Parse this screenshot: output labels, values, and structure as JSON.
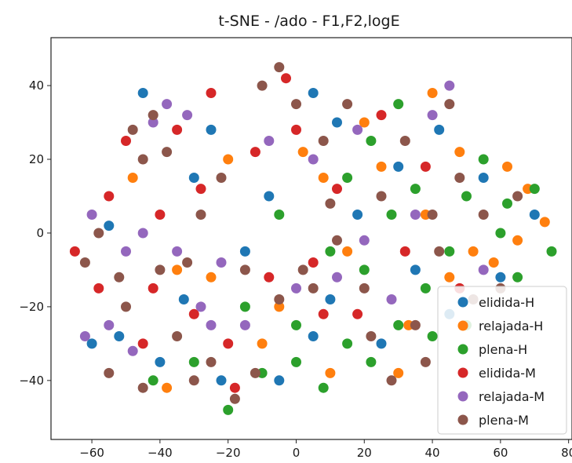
{
  "chart_data": {
    "type": "scatter",
    "title": "t-SNE - /ado - F1,F2,logE",
    "xlabel": "",
    "ylabel": "",
    "xlim": [
      -72,
      81
    ],
    "ylim": [
      -56,
      53
    ],
    "xticks": [
      -60,
      -40,
      -20,
      0,
      20,
      40,
      60,
      80
    ],
    "yticks": [
      -40,
      -20,
      0,
      20,
      40
    ],
    "grid": false,
    "legend_position": "lower-right",
    "series": [
      {
        "name": "elidida-H",
        "color": "#1f77b4",
        "points": [
          [
            -55,
            2
          ],
          [
            -52,
            -28
          ],
          [
            -45,
            38
          ],
          [
            -40,
            -35
          ],
          [
            -33,
            -18
          ],
          [
            -25,
            28
          ],
          [
            -15,
            -5
          ],
          [
            -8,
            10
          ],
          [
            5,
            38
          ],
          [
            10,
            -18
          ],
          [
            18,
            5
          ],
          [
            25,
            -30
          ],
          [
            35,
            -10
          ],
          [
            42,
            28
          ],
          [
            55,
            15
          ],
          [
            60,
            -12
          ],
          [
            70,
            5
          ],
          [
            -30,
            15
          ],
          [
            5,
            -28
          ],
          [
            30,
            18
          ],
          [
            -60,
            -30
          ],
          [
            -22,
            -40
          ],
          [
            12,
            30
          ],
          [
            45,
            -22
          ],
          [
            -5,
            -40
          ]
        ]
      },
      {
        "name": "relajada-H",
        "color": "#ff7f0e",
        "points": [
          [
            -48,
            15
          ],
          [
            -35,
            -10
          ],
          [
            -20,
            20
          ],
          [
            -5,
            -20
          ],
          [
            2,
            22
          ],
          [
            15,
            -5
          ],
          [
            20,
            30
          ],
          [
            30,
            -38
          ],
          [
            38,
            5
          ],
          [
            45,
            -12
          ],
          [
            52,
            -5
          ],
          [
            62,
            18
          ],
          [
            68,
            12
          ],
          [
            73,
            3
          ],
          [
            58,
            -8
          ],
          [
            40,
            38
          ],
          [
            10,
            -38
          ],
          [
            -10,
            -30
          ],
          [
            -25,
            -12
          ],
          [
            25,
            18
          ],
          [
            48,
            22
          ],
          [
            65,
            -2
          ],
          [
            8,
            15
          ],
          [
            -38,
            -42
          ],
          [
            33,
            -25
          ]
        ]
      },
      {
        "name": "plena-H",
        "color": "#2ca02c",
        "points": [
          [
            -42,
            -40
          ],
          [
            -30,
            -35
          ],
          [
            -20,
            -48
          ],
          [
            -10,
            -38
          ],
          [
            0,
            -35
          ],
          [
            8,
            -42
          ],
          [
            15,
            -30
          ],
          [
            22,
            -35
          ],
          [
            30,
            -25
          ],
          [
            40,
            -28
          ],
          [
            20,
            -10
          ],
          [
            28,
            5
          ],
          [
            35,
            12
          ],
          [
            45,
            -5
          ],
          [
            50,
            10
          ],
          [
            55,
            20
          ],
          [
            60,
            0
          ],
          [
            65,
            -12
          ],
          [
            70,
            12
          ],
          [
            75,
            -5
          ],
          [
            15,
            15
          ],
          [
            22,
            25
          ],
          [
            30,
            35
          ],
          [
            10,
            -5
          ],
          [
            -15,
            -20
          ],
          [
            0,
            -25
          ],
          [
            -5,
            5
          ],
          [
            50,
            -25
          ],
          [
            62,
            8
          ],
          [
            38,
            -15
          ]
        ]
      },
      {
        "name": "elidida-M",
        "color": "#d62728",
        "points": [
          [
            -65,
            -5
          ],
          [
            -58,
            -15
          ],
          [
            -50,
            25
          ],
          [
            -45,
            -30
          ],
          [
            -40,
            5
          ],
          [
            -35,
            28
          ],
          [
            -30,
            -22
          ],
          [
            -25,
            38
          ],
          [
            -20,
            -30
          ],
          [
            -12,
            22
          ],
          [
            -8,
            -12
          ],
          [
            0,
            28
          ],
          [
            5,
            -8
          ],
          [
            12,
            12
          ],
          [
            18,
            -22
          ],
          [
            25,
            32
          ],
          [
            32,
            -5
          ],
          [
            38,
            18
          ],
          [
            -42,
            -15
          ],
          [
            -55,
            10
          ],
          [
            -28,
            12
          ],
          [
            -18,
            -42
          ],
          [
            -3,
            42
          ],
          [
            48,
            -15
          ],
          [
            8,
            -22
          ]
        ]
      },
      {
        "name": "relajada-M",
        "color": "#9467bd",
        "points": [
          [
            -62,
            -28
          ],
          [
            -55,
            -25
          ],
          [
            -48,
            -32
          ],
          [
            -42,
            30
          ],
          [
            -38,
            35
          ],
          [
            -32,
            32
          ],
          [
            -28,
            -20
          ],
          [
            -22,
            -8
          ],
          [
            -15,
            -25
          ],
          [
            -8,
            25
          ],
          [
            0,
            -15
          ],
          [
            5,
            20
          ],
          [
            12,
            -12
          ],
          [
            20,
            -2
          ],
          [
            28,
            -18
          ],
          [
            35,
            5
          ],
          [
            40,
            32
          ],
          [
            45,
            40
          ],
          [
            -50,
            -5
          ],
          [
            -35,
            -5
          ],
          [
            -60,
            5
          ],
          [
            -25,
            -25
          ],
          [
            55,
            -10
          ],
          [
            18,
            28
          ],
          [
            -45,
            0
          ]
        ]
      },
      {
        "name": "plena-M",
        "color": "#8c564b",
        "points": [
          [
            -62,
            -8
          ],
          [
            -58,
            0
          ],
          [
            -55,
            -38
          ],
          [
            -50,
            -20
          ],
          [
            -48,
            28
          ],
          [
            -45,
            -42
          ],
          [
            -42,
            32
          ],
          [
            -38,
            22
          ],
          [
            -35,
            -28
          ],
          [
            -32,
            -8
          ],
          [
            -28,
            5
          ],
          [
            -25,
            -35
          ],
          [
            -22,
            15
          ],
          [
            -18,
            -45
          ],
          [
            -15,
            -10
          ],
          [
            -10,
            40
          ],
          [
            -5,
            45
          ],
          [
            0,
            35
          ],
          [
            5,
            -15
          ],
          [
            8,
            25
          ],
          [
            12,
            -2
          ],
          [
            15,
            35
          ],
          [
            20,
            -15
          ],
          [
            25,
            10
          ],
          [
            28,
            -40
          ],
          [
            32,
            25
          ],
          [
            35,
            -25
          ],
          [
            40,
            5
          ],
          [
            42,
            -5
          ],
          [
            45,
            35
          ],
          [
            48,
            15
          ],
          [
            52,
            -18
          ],
          [
            55,
            5
          ],
          [
            60,
            -15
          ],
          [
            65,
            10
          ],
          [
            -45,
            20
          ],
          [
            -30,
            -40
          ],
          [
            -12,
            -38
          ],
          [
            2,
            -10
          ],
          [
            -5,
            -18
          ],
          [
            10,
            8
          ],
          [
            -40,
            -10
          ],
          [
            -52,
            -12
          ],
          [
            22,
            -28
          ],
          [
            38,
            -35
          ]
        ]
      }
    ]
  }
}
